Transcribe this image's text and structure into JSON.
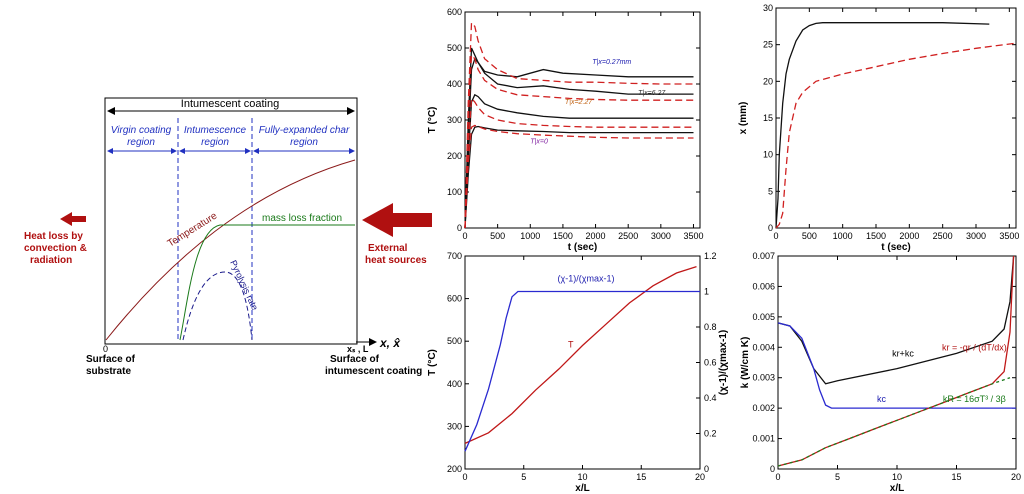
{
  "schematic": {
    "title": "Intumescent coating",
    "region1": [
      "Virgin coating",
      "region"
    ],
    "region2": [
      "Intumescence",
      "region"
    ],
    "region3": [
      "Fully-expanded char",
      "region"
    ],
    "temperature_label": "Temperature",
    "mass_loss_label": "mass loss fraction",
    "pyrolysis_label": "Pyrolysis rate",
    "heat_loss": [
      "Heat loss by",
      "convection &",
      "radiation"
    ],
    "external": [
      "External",
      "heat sources"
    ],
    "axis_label": "x, x̂",
    "xs_label": "xₛ , L",
    "origin_label": "0",
    "substrate": [
      "Surface of",
      "substrate"
    ],
    "coating_surface": [
      "Surface of",
      "intumescent coating"
    ],
    "colors": {
      "temperature": "#8b1a1a",
      "mass_loss": "#1a7a1a",
      "pyrolysis": "#1a1a8b",
      "region_text": "#2030c0",
      "arrow_red": "#b01010"
    }
  },
  "chart_data": [
    {
      "id": "temp-time",
      "type": "line",
      "xlabel": "t (sec)",
      "ylabel": "T (°C)",
      "xlim": [
        0,
        3600
      ],
      "ylim": [
        0,
        600
      ],
      "xticks": [
        0,
        500,
        1000,
        1500,
        2000,
        2500,
        3000,
        3500
      ],
      "yticks": [
        0,
        100,
        200,
        300,
        400,
        500,
        600
      ],
      "annotations": [
        {
          "text": "T|x=0.27mm",
          "x": 1950,
          "y": 455,
          "color": "#2020b0"
        },
        {
          "text": "T|x=2.27",
          "x": 1530,
          "y": 345,
          "color": "#c06010"
        },
        {
          "text": "T|x=6.27",
          "x": 2650,
          "y": 370,
          "color": "#303030"
        },
        {
          "text": "T|x=0",
          "x": 1000,
          "y": 235,
          "color": "#8020a0"
        }
      ],
      "series": [
        {
          "style": "black-solid",
          "x": [
            0,
            50,
            100,
            150,
            200,
            300,
            500,
            800,
            1200,
            1500,
            2000,
            2500,
            3000,
            3500
          ],
          "y": [
            0,
            300,
            500,
            480,
            460,
            435,
            425,
            420,
            440,
            430,
            425,
            420,
            420,
            420
          ]
        },
        {
          "style": "black-solid",
          "x": [
            0,
            50,
            100,
            150,
            200,
            300,
            500,
            800,
            1200,
            1600,
            2000,
            2500,
            3000,
            3500
          ],
          "y": [
            0,
            250,
            440,
            470,
            460,
            430,
            400,
            390,
            395,
            385,
            380,
            372,
            372,
            372
          ]
        },
        {
          "style": "black-solid",
          "x": [
            0,
            50,
            100,
            150,
            200,
            300,
            500,
            800,
            1200,
            1600,
            2000,
            2500,
            3000,
            3500
          ],
          "y": [
            0,
            200,
            350,
            370,
            365,
            345,
            330,
            320,
            310,
            305,
            305,
            305,
            305,
            305
          ]
        },
        {
          "style": "black-solid",
          "x": [
            0,
            50,
            100,
            150,
            200,
            300,
            500,
            800,
            1200,
            1600,
            2000,
            2500,
            3000,
            3500
          ],
          "y": [
            0,
            150,
            260,
            280,
            282,
            278,
            272,
            270,
            268,
            265,
            265,
            265,
            265,
            265
          ]
        },
        {
          "style": "red-dashed",
          "x": [
            0,
            50,
            100,
            150,
            200,
            300,
            500,
            800,
            1200,
            1600,
            2000,
            2500,
            3000,
            3500
          ],
          "y": [
            0,
            350,
            570,
            560,
            520,
            470,
            440,
            415,
            410,
            405,
            405,
            402,
            400,
            400
          ]
        },
        {
          "style": "red-dashed",
          "x": [
            0,
            50,
            100,
            150,
            200,
            300,
            500,
            800,
            1200,
            1600,
            2000,
            2500,
            3000,
            3500
          ],
          "y": [
            0,
            300,
            480,
            470,
            440,
            410,
            385,
            370,
            365,
            360,
            357,
            355,
            355,
            355
          ]
        },
        {
          "style": "red-dashed",
          "x": [
            0,
            50,
            100,
            150,
            200,
            300,
            500,
            800,
            1200,
            1600,
            2000,
            2500,
            3000,
            3500
          ],
          "y": [
            0,
            230,
            360,
            350,
            335,
            315,
            300,
            290,
            285,
            282,
            280,
            280,
            280,
            280
          ]
        },
        {
          "style": "red-dashed",
          "x": [
            0,
            50,
            100,
            150,
            200,
            300,
            500,
            800,
            1200,
            1600,
            2000,
            2500,
            3000,
            3500
          ],
          "y": [
            0,
            180,
            280,
            285,
            282,
            275,
            268,
            262,
            258,
            255,
            252,
            250,
            250,
            250
          ]
        }
      ]
    },
    {
      "id": "thickness-time",
      "type": "line",
      "xlabel": "t (sec)",
      "ylabel": "x (mm)",
      "xlim": [
        0,
        3600
      ],
      "ylim": [
        0,
        30
      ],
      "xticks": [
        0,
        500,
        1000,
        1500,
        2000,
        2500,
        3000,
        3500
      ],
      "yticks": [
        0,
        5,
        10,
        15,
        20,
        25,
        30
      ],
      "series": [
        {
          "style": "black-solid",
          "x": [
            0,
            30,
            50,
            100,
            150,
            200,
            300,
            400,
            500,
            600,
            700,
            1000,
            2000,
            2500,
            3200
          ],
          "y": [
            0,
            4,
            10,
            17,
            21,
            23,
            25.5,
            27,
            27.6,
            27.9,
            28,
            28,
            28,
            28,
            27.8
          ]
        },
        {
          "style": "red-dashed",
          "x": [
            0,
            50,
            100,
            150,
            200,
            300,
            400,
            600,
            1000,
            1500,
            2000,
            2500,
            3000,
            3600
          ],
          "y": [
            0,
            0.5,
            2,
            8,
            13,
            17,
            18.5,
            20,
            21,
            22,
            23,
            23.8,
            24.5,
            25.2
          ]
        }
      ]
    },
    {
      "id": "profile",
      "type": "line",
      "xlabel": "x/L",
      "ylabel": "T (°C)",
      "ylabel_right": "(χ-1)/(χmax-1)",
      "xlim": [
        0,
        20
      ],
      "ylim": [
        200,
        700
      ],
      "ylim_right": [
        0,
        1.2
      ],
      "xticks": [
        0,
        5,
        10,
        15,
        20
      ],
      "yticks": [
        200,
        300,
        400,
        500,
        600,
        700
      ],
      "yticks_right": [
        0,
        0.2,
        0.4,
        0.6,
        0.8,
        1,
        1.2
      ],
      "labels": [
        {
          "text": "(χ-1)/(χmax-1)",
          "x": 10.3,
          "y": 640,
          "color": "#2020b0"
        },
        {
          "text": "T",
          "x": 9,
          "y": 485,
          "color": "#b01010"
        }
      ],
      "series": [
        {
          "name": "T",
          "style": "red-solid",
          "x": [
            0,
            2,
            4,
            6,
            8,
            10,
            12,
            14,
            16,
            18,
            19.7
          ],
          "y": [
            260,
            285,
            330,
            385,
            435,
            490,
            540,
            590,
            630,
            660,
            675
          ]
        },
        {
          "name": "(χ-1)/(χmax-1)",
          "style": "blue-solid",
          "axis": "right",
          "x": [
            0,
            1,
            2,
            3,
            3.5,
            4,
            4.5,
            5,
            10,
            15,
            20
          ],
          "y": [
            0.1,
            0.25,
            0.45,
            0.7,
            0.85,
            0.97,
            1,
            1,
            1,
            1,
            1
          ]
        }
      ]
    },
    {
      "id": "conductivity",
      "type": "line",
      "xlabel": "x/L",
      "ylabel": "k (W/cm K)",
      "xlim": [
        0,
        20
      ],
      "ylim": [
        0,
        0.007
      ],
      "xticks": [
        0,
        5,
        10,
        15,
        20
      ],
      "yticks": [
        0,
        0.001,
        0.002,
        0.003,
        0.004,
        0.005,
        0.006,
        0.007
      ],
      "labels": [
        {
          "text": "kr+kc",
          "x": 10.5,
          "y": 0.0037,
          "color": "#000000"
        },
        {
          "text": "kc",
          "x": 8.7,
          "y": 0.0022,
          "color": "#2020b0"
        },
        {
          "text": "kr = -qr / (dT/dx)",
          "x": 16.5,
          "y": 0.0039,
          "color": "#b01010"
        },
        {
          "text": "kR = 16σT³ / 3β",
          "x": 16.5,
          "y": 0.0022,
          "color": "#1a7a1a"
        }
      ],
      "series": [
        {
          "name": "kr+kc",
          "style": "black-solid",
          "x": [
            0,
            1,
            2,
            3,
            4,
            5,
            10,
            15,
            18,
            19,
            19.5,
            19.8
          ],
          "y": [
            0.0048,
            0.0047,
            0.0042,
            0.0033,
            0.0028,
            0.0029,
            0.0033,
            0.0038,
            0.0042,
            0.0046,
            0.0055,
            0.007
          ]
        },
        {
          "name": "kc",
          "style": "blue-solid",
          "x": [
            0,
            1,
            2,
            3,
            3.5,
            4,
            4.5,
            5,
            10,
            15,
            20
          ],
          "y": [
            0.0048,
            0.0047,
            0.0043,
            0.0033,
            0.0026,
            0.0021,
            0.002,
            0.002,
            0.002,
            0.002,
            0.002
          ]
        },
        {
          "name": "kr",
          "style": "red-solid",
          "x": [
            0,
            2,
            4,
            6,
            8,
            10,
            12,
            14,
            16,
            18,
            19,
            19.5,
            19.8
          ],
          "y": [
            0.0001,
            0.0003,
            0.0007,
            0.001,
            0.0013,
            0.0016,
            0.0019,
            0.0022,
            0.0025,
            0.0028,
            0.0032,
            0.0045,
            0.007
          ]
        },
        {
          "name": "kR",
          "style": "green-dashed",
          "x": [
            0,
            2,
            4,
            6,
            8,
            10,
            12,
            14,
            16,
            18,
            19.5
          ],
          "y": [
            0.0001,
            0.0003,
            0.0007,
            0.001,
            0.0013,
            0.0016,
            0.0019,
            0.0022,
            0.0025,
            0.0028,
            0.003
          ]
        }
      ]
    }
  ]
}
